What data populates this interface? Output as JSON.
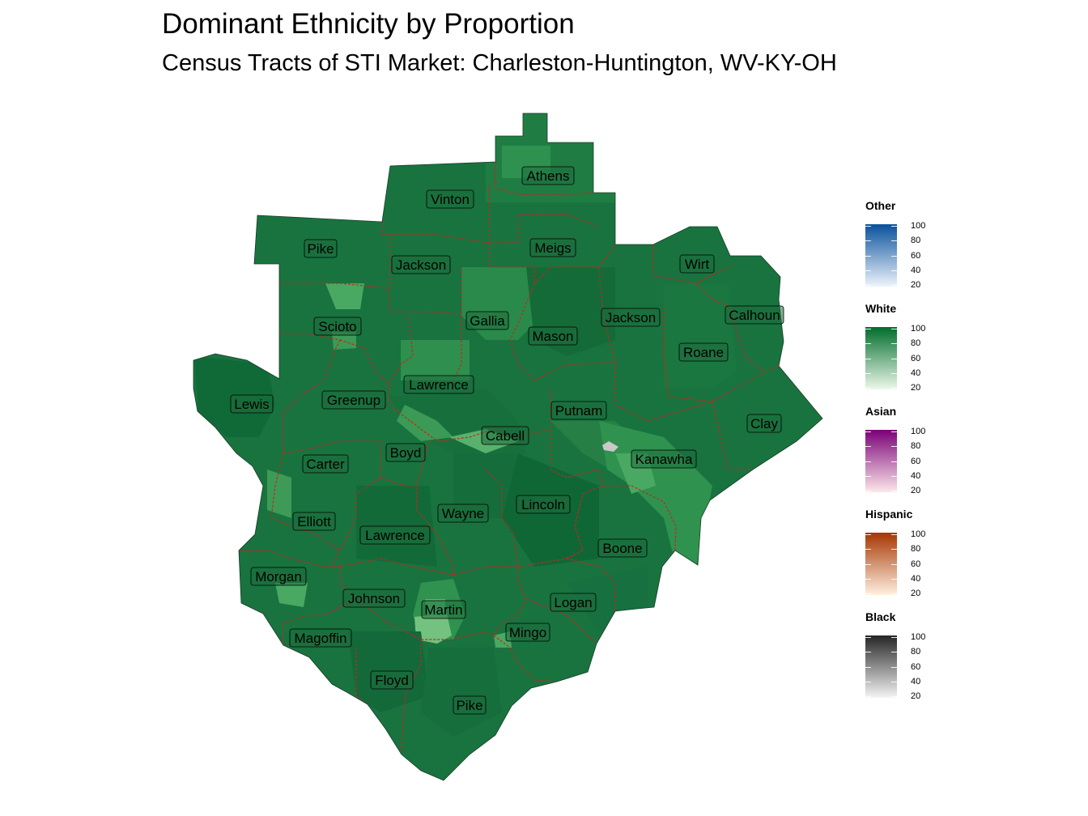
{
  "header": {
    "title": "Dominant Ethnicity by Proportion",
    "subtitle": "Census Tracts of STI Market: Charleston-Huntington, WV-KY-OH"
  },
  "map": {
    "base_fill": "#18733f",
    "border_color": "#c0281f",
    "counties": [
      {
        "name": "Athens"
      },
      {
        "name": "Vinton"
      },
      {
        "name": "Meigs"
      },
      {
        "name": "Pike"
      },
      {
        "name": "Jackson"
      },
      {
        "name": "Wirt"
      },
      {
        "name": "Gallia"
      },
      {
        "name": "Jackson"
      },
      {
        "name": "Calhoun"
      },
      {
        "name": "Scioto"
      },
      {
        "name": "Mason"
      },
      {
        "name": "Roane"
      },
      {
        "name": "Lawrence"
      },
      {
        "name": "Lewis"
      },
      {
        "name": "Greenup"
      },
      {
        "name": "Putnam"
      },
      {
        "name": "Clay"
      },
      {
        "name": "Cabell"
      },
      {
        "name": "Boyd"
      },
      {
        "name": "Kanawha"
      },
      {
        "name": "Carter"
      },
      {
        "name": "Wayne"
      },
      {
        "name": "Lincoln"
      },
      {
        "name": "Elliott"
      },
      {
        "name": "Lawrence"
      },
      {
        "name": "Boone"
      },
      {
        "name": "Morgan"
      },
      {
        "name": "Johnson"
      },
      {
        "name": "Logan"
      },
      {
        "name": "Martin"
      },
      {
        "name": "Magoffin"
      },
      {
        "name": "Mingo"
      },
      {
        "name": "Floyd"
      },
      {
        "name": "Pike"
      }
    ]
  },
  "legend": {
    "ticks": [
      "100",
      "80",
      "60",
      "40",
      "20"
    ],
    "groups": [
      {
        "title": "Other",
        "color_high": "#08519c",
        "color_low": "#eef4fb"
      },
      {
        "title": "White",
        "color_high": "#006d2c",
        "color_low": "#edf8e9"
      },
      {
        "title": "Asian",
        "color_high": "#7a0177",
        "color_low": "#fde8ea"
      },
      {
        "title": "Hispanic",
        "color_high": "#a63603",
        "color_low": "#fff0e0"
      },
      {
        "title": "Black",
        "color_high": "#252525",
        "color_low": "#f5f5f5"
      }
    ]
  }
}
